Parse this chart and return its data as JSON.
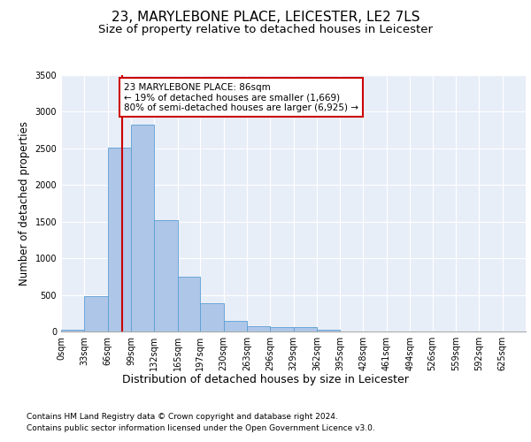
{
  "title_line1": "23, MARYLEBONE PLACE, LEICESTER, LE2 7LS",
  "title_line2": "Size of property relative to detached houses in Leicester",
  "xlabel": "Distribution of detached houses by size in Leicester",
  "ylabel": "Number of detached properties",
  "bar_values": [
    20,
    480,
    2510,
    2820,
    1520,
    750,
    390,
    140,
    75,
    55,
    55,
    20,
    0,
    0,
    0,
    0,
    0,
    0,
    0,
    0
  ],
  "bin_edges": [
    0,
    33,
    66,
    99,
    132,
    165,
    197,
    230,
    263,
    296,
    329,
    362,
    395,
    428,
    461,
    494,
    526,
    559,
    592,
    625,
    658
  ],
  "bar_color": "#aec6e8",
  "bar_edge_color": "#5a9fd4",
  "bg_color": "#e8eef8",
  "grid_color": "#ffffff",
  "vline_x": 86,
  "vline_color": "#cc0000",
  "annotation_text": "23 MARYLEBONE PLACE: 86sqm\n← 19% of detached houses are smaller (1,669)\n80% of semi-detached houses are larger (6,925) →",
  "annotation_box_color": "#cc0000",
  "ylim": [
    0,
    3500
  ],
  "yticks": [
    0,
    500,
    1000,
    1500,
    2000,
    2500,
    3000,
    3500
  ],
  "footer_line1": "Contains HM Land Registry data © Crown copyright and database right 2024.",
  "footer_line2": "Contains public sector information licensed under the Open Government Licence v3.0.",
  "title_fontsize": 11,
  "subtitle_fontsize": 9.5,
  "axis_label_fontsize": 8.5,
  "tick_fontsize": 7,
  "annotation_fontsize": 7.5,
  "footer_fontsize": 6.5
}
